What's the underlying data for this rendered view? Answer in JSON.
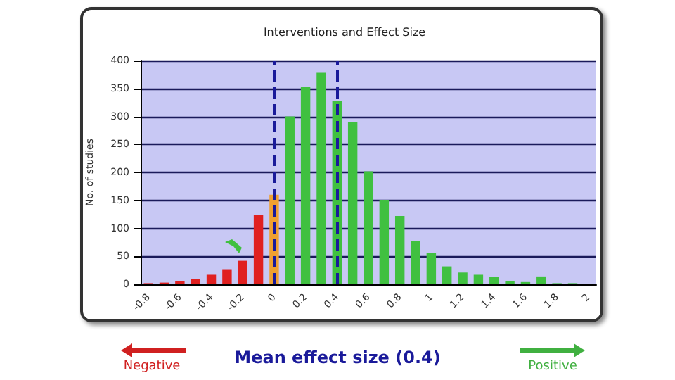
{
  "chart_data": {
    "type": "bar",
    "title": "Interventions and Effect Size",
    "ylabel": "No. of studies",
    "categories": [
      "-0.8",
      null,
      "-0.6",
      null,
      "-0.4",
      null,
      "-0.2",
      null,
      "0",
      null,
      "0.2",
      null,
      "0.4",
      null,
      "0.6",
      null,
      "0.8",
      null,
      "1",
      null,
      "1.2",
      null,
      "1.4",
      null,
      "1.6",
      null,
      "1.8",
      null,
      "2"
    ],
    "values": [
      2,
      3,
      6,
      10,
      17,
      27,
      42,
      124,
      160,
      300,
      353,
      378,
      328,
      290,
      202,
      151,
      122,
      78,
      56,
      32,
      21,
      17,
      13,
      6,
      4,
      14,
      2,
      2,
      0
    ],
    "colors": [
      "#e02020",
      "#e02020",
      "#e02020",
      "#e02020",
      "#e02020",
      "#e02020",
      "#e02020",
      "#e02020",
      "#f0a030",
      "#40c040",
      "#40c040",
      "#40c040",
      "#40c040",
      "#40c040",
      "#40c040",
      "#40c040",
      "#40c040",
      "#40c040",
      "#40c040",
      "#40c040",
      "#40c040",
      "#40c040",
      "#40c040",
      "#40c040",
      "#40c040",
      "#40c040",
      "#40c040",
      "#40c040",
      "#40c040"
    ],
    "ylim": [
      0,
      400
    ],
    "yticks": [
      0,
      50,
      100,
      150,
      200,
      250,
      300,
      350,
      400
    ],
    "grid": "y",
    "ref_lines": [
      {
        "axis": "x",
        "value": "0",
        "color": "#1a1a9a",
        "line_style": "dashed"
      },
      {
        "axis": "x",
        "value": "0.4",
        "color": "#1a1a9a",
        "line_style": "dashed"
      }
    ],
    "annotations": [
      "Mean effect size (0.4)",
      "Negative",
      "Positive"
    ]
  }
}
